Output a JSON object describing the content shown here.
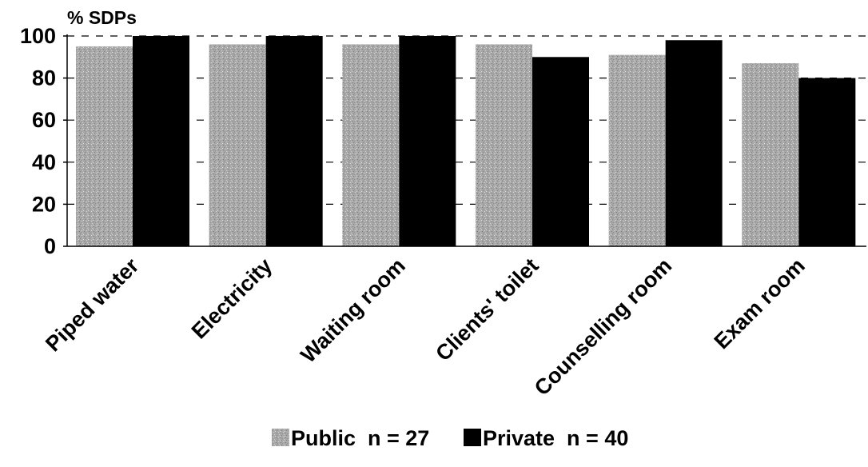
{
  "chart_data": {
    "type": "bar",
    "ylabel": "% SDPs",
    "xlabel": "",
    "ylim": [
      0,
      100
    ],
    "yticks": [
      0,
      20,
      40,
      60,
      80,
      100
    ],
    "grid": "dashed horizontal",
    "legend_position": "bottom",
    "categories": [
      "Piped water",
      "Electricity",
      "Waiting room",
      "Clients' toilet",
      "Counselling room",
      "Exam room"
    ],
    "series": [
      {
        "name": "Public  n = 27",
        "color": "#a8a8a8",
        "values": [
          95,
          96,
          96,
          96,
          91,
          87
        ]
      },
      {
        "name": "Private  n = 40",
        "color": "#000000",
        "values": [
          100,
          100,
          100,
          90,
          98,
          80
        ]
      }
    ]
  }
}
